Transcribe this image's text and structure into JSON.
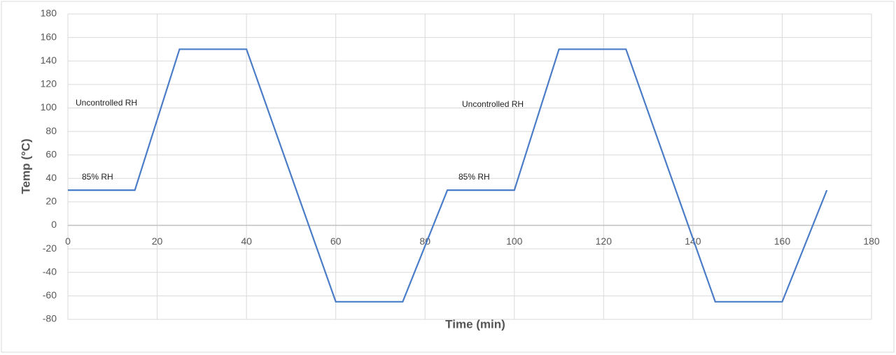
{
  "chart_data": {
    "type": "line",
    "x_label": "Time (min)",
    "y_label": "Temp (°C)",
    "x": [
      0,
      15,
      25,
      40,
      60,
      75,
      85,
      100,
      110,
      125,
      145,
      160,
      170
    ],
    "series": [
      {
        "color": "#4a7cc7",
        "values": [
          30,
          30,
          150,
          150,
          -65,
          -65,
          30,
          30,
          150,
          150,
          -65,
          -65,
          30
        ]
      }
    ],
    "xlim": [
      0,
      180
    ],
    "xticks": [
      0,
      20,
      40,
      60,
      80,
      100,
      120,
      140,
      160,
      180
    ],
    "ylim": [
      -80,
      180
    ],
    "yticks": [
      -80,
      -60,
      -40,
      -20,
      0,
      20,
      40,
      60,
      80,
      100,
      120,
      140,
      160,
      180
    ],
    "grid": true,
    "annotations": [
      "Uncontrolled RH",
      "85% RH",
      "Uncontrolled RH",
      "85% RH"
    ]
  }
}
